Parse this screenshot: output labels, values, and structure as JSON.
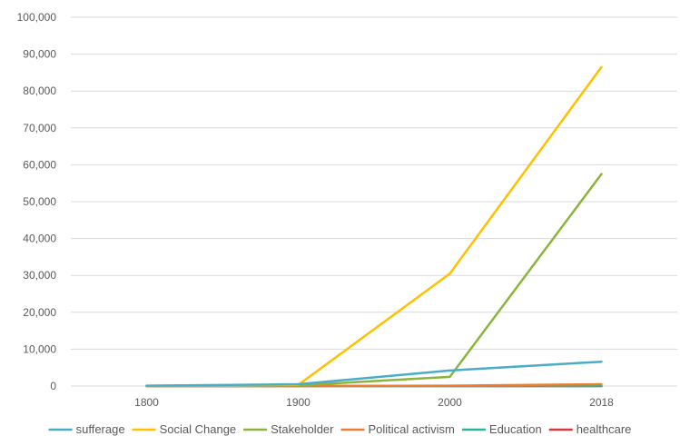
{
  "chart_data": {
    "type": "line",
    "categories": [
      "1800",
      "1900",
      "2000",
      "2018"
    ],
    "y_ticks": [
      "0",
      "10,000",
      "20,000",
      "30,000",
      "40,000",
      "50,000",
      "60,000",
      "70,000",
      "80,000",
      "90,000",
      "100,000"
    ],
    "ylim": [
      0,
      100000
    ],
    "grid": true,
    "legend_position": "bottom",
    "series": [
      {
        "name": "sufferage",
        "color": "#4bacc6",
        "values": [
          100,
          500,
          4200,
          6600
        ]
      },
      {
        "name": "Social Change",
        "color": "#ffc000",
        "values": [
          50,
          300,
          30500,
          86500
        ]
      },
      {
        "name": "Stakeholder",
        "color": "#8cb43c",
        "values": [
          0,
          200,
          2500,
          57500
        ]
      },
      {
        "name": "Political activism",
        "color": "#ed7d31",
        "values": [
          0,
          0,
          100,
          500
        ]
      },
      {
        "name": "Education",
        "color": "#2ab59b",
        "values": [
          0,
          0,
          0,
          0
        ]
      },
      {
        "name": "healthcare",
        "color": "#d8383a",
        "values": [
          0,
          0,
          0,
          0
        ]
      }
    ]
  }
}
